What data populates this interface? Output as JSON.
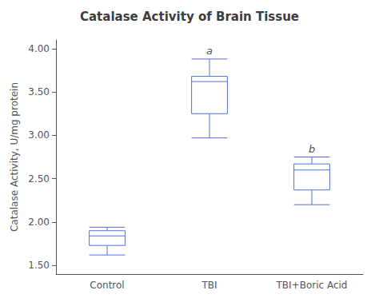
{
  "chart_data": {
    "type": "boxplot",
    "title": "Catalase Activity of Brain Tissue",
    "ylabel": "Catalase Activity, U/mg protein",
    "categories": [
      "Control",
      "TBI",
      "TBI+Boric Acid"
    ],
    "boxes": [
      {
        "whisker_low": 1.62,
        "q1": 1.73,
        "median": 1.84,
        "q3": 1.9,
        "whisker_high": 1.94
      },
      {
        "whisker_low": 2.97,
        "q1": 3.25,
        "median": 3.62,
        "q3": 3.68,
        "whisker_high": 3.88
      },
      {
        "whisker_low": 2.2,
        "q1": 2.37,
        "median": 2.6,
        "q3": 2.67,
        "whisker_high": 2.75
      }
    ],
    "annotations": [
      null,
      "a",
      "b"
    ],
    "ylim": [
      1.4,
      4.1
    ],
    "yticks": [
      {
        "value": 1.5,
        "label": "1.50"
      },
      {
        "value": 2.0,
        "label": "2.00"
      },
      {
        "value": 2.5,
        "label": "2.50"
      },
      {
        "value": 3.0,
        "label": "3.00"
      },
      {
        "value": 3.5,
        "label": "3.50"
      },
      {
        "value": 4.0,
        "label": "4.00"
      }
    ],
    "grid": false
  }
}
